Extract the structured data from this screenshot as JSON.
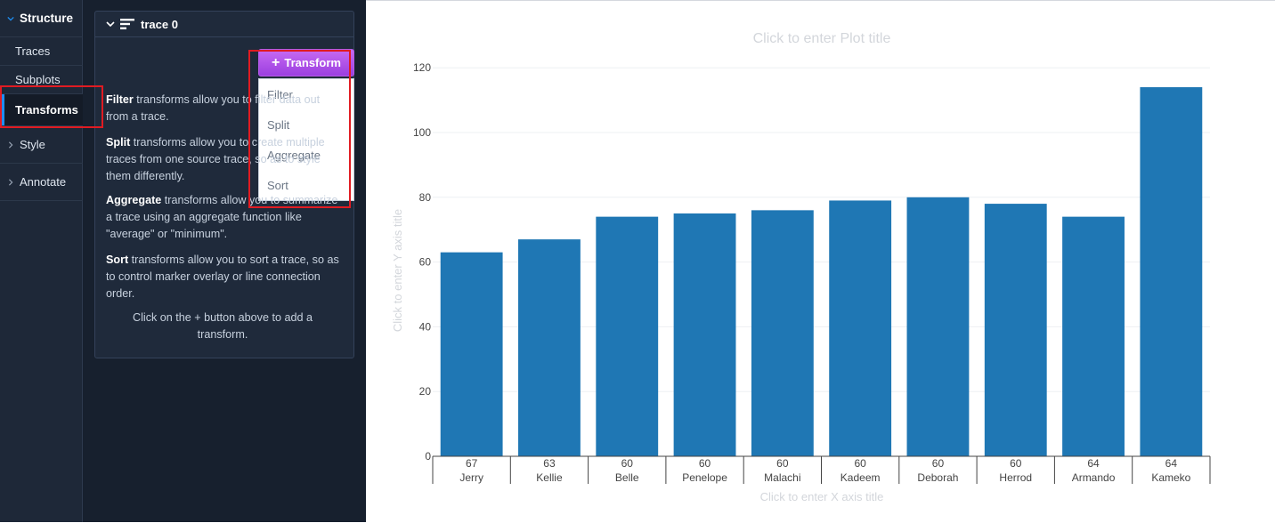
{
  "nav": {
    "structure_label": "Structure",
    "items": [
      {
        "label": "Traces"
      },
      {
        "label": "Subplots"
      },
      {
        "label": "Transforms"
      }
    ],
    "style_label": "Style",
    "annotate_label": "Annotate",
    "accent_color": "#1f8ef1"
  },
  "panel": {
    "trace_title": "trace 0",
    "add_button_label": "Transform",
    "menu_options": [
      "Filter",
      "Split",
      "Aggregate",
      "Sort"
    ],
    "descriptions": [
      {
        "bold": "Filter",
        "text": " transforms allow you to filter data out from a trace."
      },
      {
        "bold": "Split",
        "text": " transforms allow you to create multiple traces from one source trace, so as to style them differently."
      },
      {
        "bold": "Aggregate",
        "text": " transforms allow you to summarize a trace using an aggregate function like \"average\" or \"minimum\"."
      },
      {
        "bold": "Sort",
        "text": " transforms allow you to sort a trace, so as to control marker overlay or line connection order."
      }
    ],
    "footer_hint": "Click on the + button above to add a transform.",
    "button_color": "#b055ec"
  },
  "plot": {
    "title_placeholder": "Click to enter Plot title",
    "xaxis_placeholder": "Click to enter X axis title",
    "yaxis_placeholder": "Click to enter Y axis title"
  },
  "chart_data": {
    "type": "bar",
    "categories": [
      {
        "top": "67",
        "bottom": "Jerry"
      },
      {
        "top": "63",
        "bottom": "Kellie"
      },
      {
        "top": "60",
        "bottom": "Belle"
      },
      {
        "top": "60",
        "bottom": "Penelope"
      },
      {
        "top": "60",
        "bottom": "Malachi"
      },
      {
        "top": "60",
        "bottom": "Kadeem"
      },
      {
        "top": "60",
        "bottom": "Deborah"
      },
      {
        "top": "60",
        "bottom": "Herrod"
      },
      {
        "top": "64",
        "bottom": "Armando"
      },
      {
        "top": "64",
        "bottom": "Kameko"
      }
    ],
    "values": [
      63,
      67,
      74,
      75,
      76,
      79,
      80,
      78,
      74,
      114
    ],
    "ylim": [
      0,
      125
    ],
    "yticks": [
      0,
      20,
      40,
      60,
      80,
      100,
      120
    ],
    "bar_color": "#1f77b4",
    "grid": true
  }
}
